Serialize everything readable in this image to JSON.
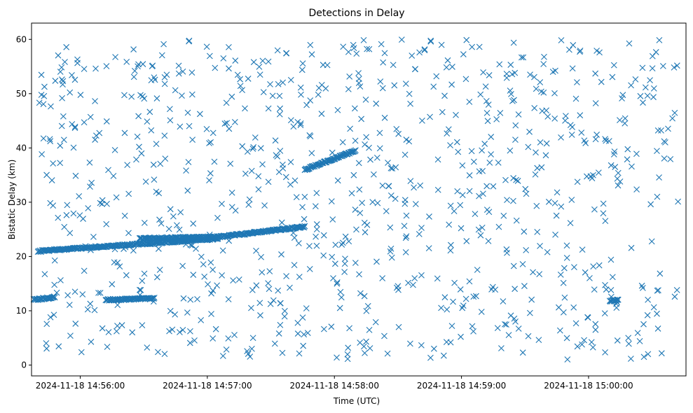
{
  "chart_data": {
    "type": "scatter",
    "title": "Detections in Delay",
    "xlabel": "Time (UTC)",
    "ylabel": "Bistatic Delay (km)",
    "marker": "x",
    "color": "#1f77b4",
    "grid": false,
    "xlim": [
      "2024-11-18 14:55:37",
      "2024-11-18 15:00:46"
    ],
    "ylim": [
      -2,
      63
    ],
    "xticks": [
      "2024-11-18 14:56:00",
      "2024-11-18 14:57:00",
      "2024-11-18 14:58:00",
      "2024-11-18 14:59:00",
      "2024-11-18 15:00:00"
    ],
    "yticks": [
      0,
      10,
      20,
      30,
      40,
      50,
      60
    ],
    "start": "2024-11-18 14:55:40",
    "end": "2024-11-18 15:00:43",
    "tracks": [
      {
        "from": [
          "2024-11-18 14:55:40",
          21.0
        ],
        "to": [
          "2024-11-18 14:57:05",
          23.3
        ]
      },
      {
        "from": [
          "2024-11-18 14:56:28",
          23.3
        ],
        "to": [
          "2024-11-18 14:57:05",
          23.6
        ]
      },
      {
        "from": [
          "2024-11-18 14:57:05",
          23.6
        ],
        "to": [
          "2024-11-18 14:57:46",
          25.5
        ]
      },
      {
        "from": [
          "2024-11-18 14:57:46",
          36.0
        ],
        "to": [
          "2024-11-18 14:58:10",
          39.5
        ]
      },
      {
        "from": [
          "2024-11-18 14:55:38",
          12.0
        ],
        "to": [
          "2024-11-18 14:55:48",
          12.5
        ]
      },
      {
        "from": [
          "2024-11-18 14:56:12",
          12.0
        ],
        "to": [
          "2024-11-18 14:56:35",
          12.3
        ]
      },
      {
        "from": [
          "2024-11-18 15:00:10",
          11.8
        ],
        "to": [
          "2024-11-18 15:00:14",
          12.0
        ]
      }
    ]
  }
}
